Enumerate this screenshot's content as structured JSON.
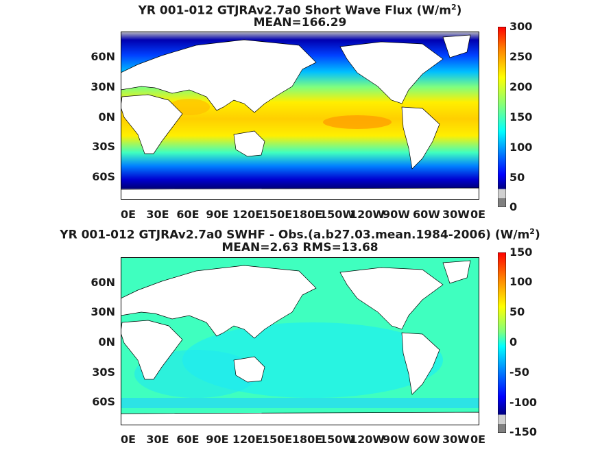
{
  "panels": [
    {
      "title_pre": "YR 001-012 GTJRAv2.7a0  Short Wave Flux (W/m",
      "title_sup": "2",
      "title_post": ")",
      "subtitle": "MEAN=166.29",
      "colorbar_ticks": [
        "300",
        "250",
        "200",
        "150",
        "100",
        "50",
        "0"
      ]
    },
    {
      "title_pre": "YR 001-012 GTJRAv2.7a0 SWHF - Obs.(a.b27.03.mean.1984-2006) (W/m",
      "title_sup": "2",
      "title_post": ")",
      "subtitle": "MEAN=2.63 RMS=13.68",
      "colorbar_ticks": [
        "150",
        "100",
        "50",
        "0",
        "-50",
        "-100",
        "-150"
      ]
    }
  ],
  "lat_labels": [
    "60N",
    "30N",
    "0N",
    "30S",
    "60S"
  ],
  "lon_labels": [
    "0E",
    "30E",
    "60E",
    "90E",
    "120E",
    "150E",
    "180E",
    "150W",
    "120W",
    "90W",
    "60W",
    "30W",
    "0E"
  ],
  "colors": {
    "jet": [
      "#00007f",
      "#0000ff",
      "#007fff",
      "#00ffff",
      "#7fff7f",
      "#ffff00",
      "#ff7f00",
      "#ff0000",
      "#7f0000"
    ],
    "land": "#ffffff",
    "missing": "#bdbdbd"
  }
}
